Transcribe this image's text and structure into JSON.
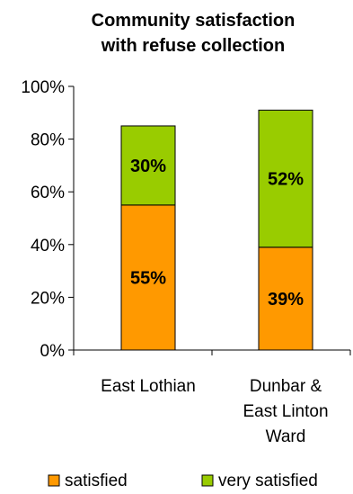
{
  "chart_data": {
    "type": "bar",
    "stacked": true,
    "title_lines": [
      "Community satisfaction",
      "with refuse collection"
    ],
    "categories": [
      [
        "East Lothian"
      ],
      [
        "Dunbar &",
        "East Linton",
        "Ward"
      ]
    ],
    "series": [
      {
        "name": "satisfied",
        "values": [
          55,
          39
        ],
        "labels": [
          "55%",
          "39%"
        ],
        "color": "#FF9900"
      },
      {
        "name": "very satisfied",
        "values": [
          30,
          52
        ],
        "labels": [
          "30%",
          "52%"
        ],
        "color": "#99CC00"
      }
    ],
    "yticks": [
      "0%",
      "20%",
      "40%",
      "60%",
      "80%",
      "100%"
    ],
    "ylim": [
      0,
      100
    ],
    "grid": false,
    "legend_position": "bottom"
  }
}
